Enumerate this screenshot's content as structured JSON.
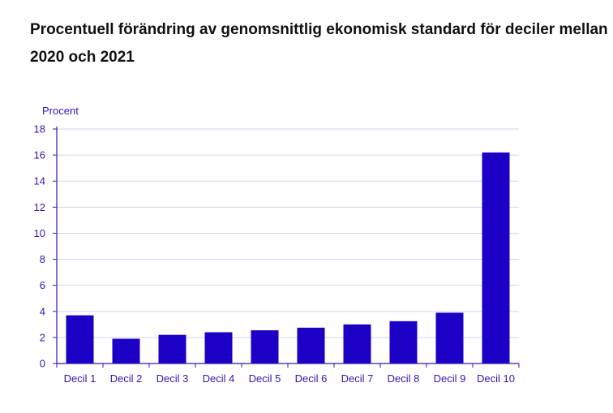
{
  "title_line1": "Procentuell förändring av genomsnittlig ekonomisk standard för deciler mellan",
  "title_line2": "2020 och 2021",
  "colors": {
    "bar": "#1b00c6",
    "grid": "#d6d3f0",
    "axis": "#2a1ab0",
    "text": "#2a1ab0"
  },
  "chart_data": {
    "type": "bar",
    "categories": [
      "Decil 1",
      "Decil 2",
      "Decil 3",
      "Decil 4",
      "Decil 5",
      "Decil 6",
      "Decil 7",
      "Decil 8",
      "Decil 9",
      "Decil 10"
    ],
    "values": [
      3.7,
      1.9,
      2.2,
      2.4,
      2.55,
      2.75,
      3.0,
      3.25,
      3.9,
      16.2
    ],
    "ylabel": "Procent",
    "ylim": [
      0,
      18
    ],
    "yticks": [
      0,
      2,
      4,
      6,
      8,
      10,
      12,
      14,
      16,
      18
    ],
    "ytick_labels": [
      "0",
      "2",
      "4",
      "6",
      "8",
      "10",
      "12",
      "14",
      "16",
      "18"
    ],
    "grid": true
  }
}
